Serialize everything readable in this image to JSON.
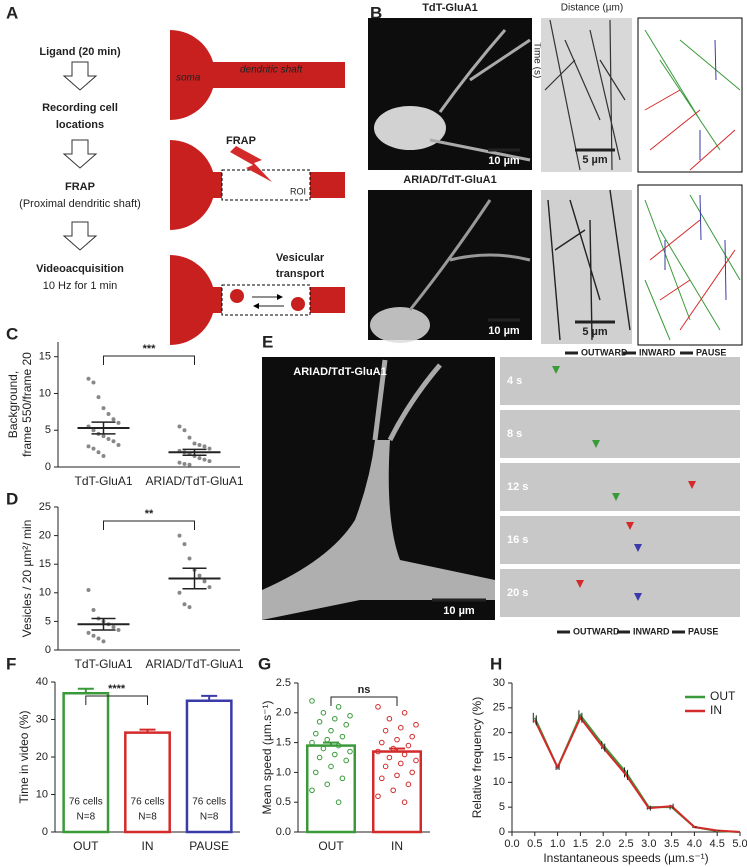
{
  "panels": {
    "A": {
      "label": "A",
      "steps": [
        [
          "Ligand (20 min)"
        ],
        [
          "Recording cell",
          "locations"
        ],
        [
          "FRAP",
          "(Proximal dendritic shaft)"
        ],
        [
          "Videoacquisition",
          "10 Hz for 1 min"
        ]
      ],
      "soma": "soma",
      "shaft": "dendritic shaft",
      "frap": "FRAP",
      "roi": "ROI",
      "transport": [
        "Vesicular",
        "transport"
      ]
    },
    "B": {
      "label": "B",
      "rows": [
        "TdT-GluA1",
        "ARIAD/TdT-GluA1"
      ],
      "scale_image": "10 µm",
      "scale_kymo": "5 µm",
      "time_axis": "Time (s)",
      "distance_axis": "Distance (µm)",
      "legend": [
        "OUTWARD",
        "INWARD",
        "PAUSE"
      ]
    },
    "E": {
      "label": "E",
      "title": "ARIAD/TdT-GluA1",
      "scale": "10 µm",
      "times": [
        "4 s",
        "8 s",
        "12 s",
        "16 s",
        "20 s"
      ],
      "legend": [
        "OUTWARD",
        "INWARD",
        "PAUSE"
      ]
    }
  },
  "chart_data": [
    {
      "type": "strip",
      "panel": "C",
      "ylabel": [
        "Background,",
        "frame 550/frame 20"
      ],
      "categories": [
        "TdT-GluA1",
        "ARIAD/TdT-GluA1"
      ],
      "groups": [
        {
          "points": [
            12,
            11.5,
            9.5,
            8,
            7.2,
            6.5,
            6,
            5.5,
            5,
            4.5,
            4.2,
            3.8,
            3.5,
            3,
            2.8,
            2.5,
            2,
            1.5
          ],
          "mean": 5.3,
          "sem": 0.8
        },
        {
          "points": [
            5.5,
            5,
            4,
            3.2,
            3,
            2.8,
            2.5,
            2.2,
            2,
            1.8,
            1.5,
            1.2,
            1,
            0.8,
            0.6,
            0.4,
            0.3
          ],
          "mean": 2.0,
          "sem": 0.4
        }
      ],
      "significance": "***",
      "ylim": [
        0,
        17
      ],
      "yticks": [
        0,
        5,
        10,
        15
      ]
    },
    {
      "type": "strip",
      "panel": "D",
      "ylabel": [
        "Vesicles / 20 µm²/ min"
      ],
      "categories": [
        "TdT-GluA1",
        "ARIAD/TdT-GluA1"
      ],
      "groups": [
        {
          "points": [
            10.5,
            7,
            5.5,
            5,
            4.5,
            4,
            3.5,
            3,
            2.5,
            2,
            1.5
          ],
          "mean": 4.5,
          "sem": 1.0
        },
        {
          "points": [
            20,
            18.5,
            16,
            14,
            13,
            12,
            11,
            10,
            8,
            7.5
          ],
          "mean": 12.5,
          "sem": 1.8
        }
      ],
      "significance": "**",
      "ylim": [
        0,
        25
      ],
      "yticks": [
        0,
        5,
        10,
        15,
        20,
        25
      ]
    },
    {
      "type": "bar",
      "panel": "F",
      "ylabel": [
        "Time in video (%)"
      ],
      "categories": [
        "OUT",
        "IN",
        "PAUSE"
      ],
      "values": [
        37,
        26.5,
        35
      ],
      "errors": [
        1.2,
        0.8,
        1.3
      ],
      "colors": [
        "#3a9a3a",
        "#d42a2a",
        "#3a3aa8"
      ],
      "bar_texts": [
        [
          "76 cells",
          "N=8"
        ],
        [
          "76 cells",
          "N=8"
        ],
        [
          "76 cells",
          "N=8"
        ]
      ],
      "significance": "****",
      "ylim": [
        0,
        40
      ],
      "yticks": [
        0,
        10,
        20,
        30,
        40
      ]
    },
    {
      "type": "bar",
      "panel": "G",
      "ylabel": [
        "Mean speed (µm.s⁻¹)"
      ],
      "categories": [
        "OUT",
        "IN"
      ],
      "values": [
        1.45,
        1.35
      ],
      "errors": [
        0.05,
        0.05
      ],
      "colors": [
        "#3a9a3a",
        "#d42a2a"
      ],
      "points": [
        [
          2.2,
          2.1,
          2.0,
          1.95,
          1.9,
          1.85,
          1.8,
          1.7,
          1.65,
          1.6,
          1.55,
          1.5,
          1.45,
          1.4,
          1.35,
          1.3,
          1.25,
          1.2,
          1.1,
          1.0,
          0.9,
          0.8,
          0.7,
          0.5
        ],
        [
          2.1,
          2.0,
          1.9,
          1.8,
          1.75,
          1.7,
          1.6,
          1.55,
          1.5,
          1.45,
          1.4,
          1.35,
          1.3,
          1.25,
          1.2,
          1.15,
          1.1,
          1.0,
          0.95,
          0.9,
          0.8,
          0.7,
          0.6,
          0.5
        ]
      ],
      "significance": "ns",
      "ylim": [
        0,
        2.5
      ],
      "yticks": [
        {
          "value": 0,
          "label": "0.0"
        },
        0.5,
        {
          "value": 1,
          "label": "1.0"
        },
        1.5,
        {
          "value": 2,
          "label": "2.0"
        },
        2.5
      ]
    },
    {
      "type": "line",
      "panel": "H",
      "xlabel": "Instantaneous speeds (µm.s⁻¹)",
      "ylabel": [
        "Relative frequency (%)"
      ],
      "x": [
        0.5,
        1,
        1.5,
        2,
        2.5,
        3,
        3.5,
        4,
        4.5,
        5
      ],
      "series": [
        {
          "name": "OUT",
          "color": "#3a9a3a",
          "values": [
            23,
            13,
            23.5,
            17.5,
            12,
            5,
            5,
            1,
            0.2,
            0
          ],
          "errors": [
            1,
            0.5,
            1,
            0.8,
            1,
            0.5,
            0.5,
            0.2,
            0.1,
            0
          ]
        },
        {
          "name": "IN",
          "color": "#d42a2a",
          "values": [
            22.5,
            13,
            23,
            17,
            11.5,
            4.8,
            5.2,
            1,
            0.3,
            0
          ],
          "errors": [
            1,
            0.5,
            1,
            0.8,
            1,
            0.5,
            0.5,
            0.2,
            0.1,
            0
          ]
        }
      ],
      "xlim": [
        0,
        5
      ],
      "xticks": [
        {
          "value": 0,
          "label": "0.0"
        },
        0.5,
        {
          "value": 1,
          "label": "1.0"
        },
        1.5,
        {
          "value": 2,
          "label": "2.0"
        },
        2.5,
        {
          "value": 3,
          "label": "3.0"
        },
        3.5,
        {
          "value": 4,
          "label": "4.0"
        },
        4.5,
        {
          "value": 5,
          "label": "5.0"
        }
      ],
      "ylim": [
        0,
        30
      ],
      "yticks": [
        0,
        5,
        10,
        15,
        20,
        25,
        30
      ],
      "legend": "upper right"
    }
  ]
}
